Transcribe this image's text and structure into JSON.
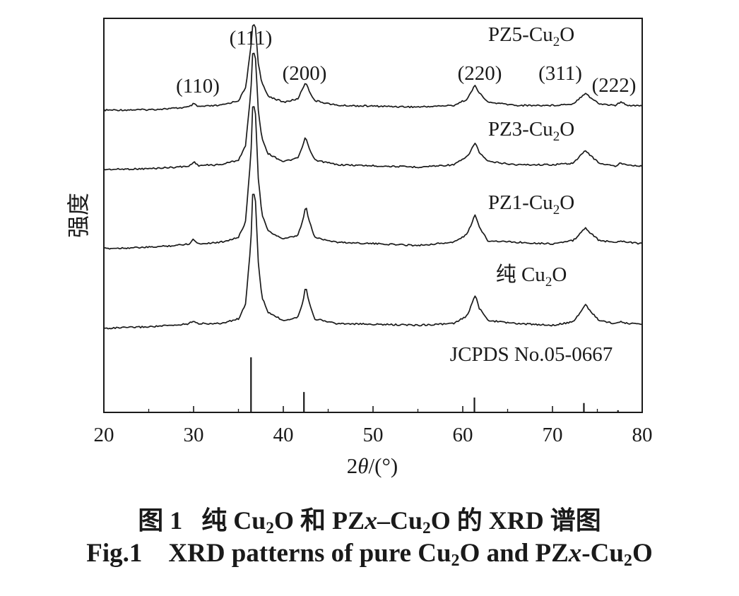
{
  "chart_data": {
    "type": "line",
    "xlabel_prefix": "2",
    "xlabel_theta": "θ",
    "xlabel_suffix": "/(°)",
    "ylabel": "强度",
    "xlim": [
      20,
      80
    ],
    "x_ticks": [
      "20",
      "30",
      "40",
      "50",
      "60",
      "70",
      "80"
    ],
    "grid": false,
    "series": [
      {
        "name_main": "PZ5-Cu",
        "name_sub": "2",
        "name_tail": "O",
        "x": [
          20,
          25,
          28,
          29.5,
          30,
          30.5,
          33,
          35,
          35.8,
          36.4,
          36.6,
          36.9,
          37.2,
          37.6,
          38.3,
          40,
          41.6,
          42.2,
          42.5,
          42.8,
          43.5,
          46,
          55,
          59,
          60.5,
          61.2,
          61.4,
          61.8,
          62.8,
          66,
          70,
          72.3,
          73.7,
          74.2,
          75.2,
          77,
          77.6,
          78.5,
          80
        ],
        "y": [
          0,
          0.3,
          1.2,
          2,
          4,
          2.2,
          3,
          6,
          14,
          40,
          55,
          52,
          30,
          17,
          9,
          5,
          7,
          14,
          18,
          13,
          6,
          3,
          2,
          3,
          7,
          14,
          16,
          11,
          5,
          3,
          3,
          4,
          11,
          8,
          4,
          3,
          5,
          3,
          3
        ]
      },
      {
        "name_main": "PZ3-Cu",
        "name_sub": "2",
        "name_tail": "O",
        "x": [
          20,
          25,
          28,
          29.5,
          30,
          30.5,
          33,
          35,
          35.8,
          36.4,
          36.6,
          36.9,
          37.2,
          37.6,
          38.3,
          40,
          41.6,
          42.2,
          42.5,
          42.8,
          43.5,
          46,
          55,
          59,
          60.5,
          61.2,
          61.4,
          61.8,
          62.8,
          66,
          70,
          72.3,
          73.7,
          74.2,
          75.2,
          77,
          77.6,
          78.5,
          80
        ],
        "y": [
          0,
          0.5,
          1.5,
          2,
          5,
          2.5,
          3,
          6,
          15,
          50,
          76,
          70,
          38,
          20,
          10,
          5,
          7,
          15,
          21,
          14,
          6,
          3,
          1.5,
          3,
          8,
          15,
          17,
          11,
          5,
          3,
          3,
          4,
          12,
          9,
          4,
          2,
          4,
          3,
          2
        ]
      },
      {
        "name_main": "PZ1-Cu",
        "name_sub": "2",
        "name_tail": "O",
        "x": [
          20,
          25,
          28,
          29.5,
          30,
          30.5,
          33,
          35,
          35.8,
          36.4,
          36.6,
          36.9,
          37.2,
          37.6,
          38.3,
          40,
          41.6,
          42.2,
          42.5,
          42.8,
          43.5,
          46,
          55,
          59,
          60.5,
          61.2,
          61.4,
          61.8,
          62.8,
          66,
          70,
          72.3,
          73.7,
          74.2,
          75.2,
          77,
          77.6,
          78.5,
          80
        ],
        "y": [
          0,
          0.8,
          2,
          3,
          6,
          3,
          4,
          7,
          17,
          60,
          93,
          85,
          45,
          22,
          11,
          6,
          8,
          18,
          27,
          19,
          7,
          4,
          2,
          4,
          9,
          19,
          21,
          14,
          5,
          4,
          3,
          5,
          13,
          10,
          5,
          4,
          5,
          4,
          3
        ]
      },
      {
        "name_main": "纯 Cu",
        "name_sub": "2",
        "name_tail": "O",
        "x": [
          20,
          25,
          28,
          29.5,
          30,
          30.5,
          33,
          35,
          35.8,
          36.4,
          36.6,
          36.9,
          37.2,
          37.6,
          38.3,
          40,
          41.6,
          42.2,
          42.5,
          42.8,
          43.5,
          46,
          55,
          59,
          60.5,
          61.2,
          61.4,
          61.8,
          62.8,
          66,
          70,
          72.3,
          73.7,
          74.2,
          75.2,
          77,
          77.6,
          78.5,
          80
        ],
        "y": [
          0,
          1,
          2,
          3,
          5,
          3,
          3,
          6,
          15,
          55,
          88,
          80,
          42,
          20,
          10,
          5,
          7,
          17,
          27,
          18,
          6,
          3,
          2,
          3,
          8,
          18,
          21,
          13,
          5,
          3,
          2,
          4,
          15,
          11,
          5,
          3,
          4,
          3,
          3
        ]
      }
    ],
    "reference": {
      "label": "JCPDS No.05-0667",
      "x": [
        29.6,
        36.4,
        42.3,
        61.3,
        73.5,
        77.3
      ],
      "intensity": [
        1.5,
        100,
        37,
        27,
        17,
        4
      ]
    },
    "peak_labels": [
      {
        "text": "(110)"
      },
      {
        "text": "(111)"
      },
      {
        "text": "(200)"
      },
      {
        "text": "(220)"
      },
      {
        "text": "(311)"
      },
      {
        "text": "(222)"
      }
    ]
  },
  "caption": {
    "cn_fig": "图 1",
    "cn_a": "纯 Cu",
    "cn_sub1": "2",
    "cn_b": "O 和 PZ",
    "cn_x": "x",
    "cn_c": "–Cu",
    "cn_sub2": "2",
    "cn_d": "O 的 XRD 谱图",
    "en_fig": "Fig.1",
    "en_a": "XRD patterns of pure Cu",
    "en_sub1": "2",
    "en_b": "O and PZ",
    "en_x": "x",
    "en_c": "-Cu",
    "en_sub2": "2",
    "en_d": "O"
  }
}
